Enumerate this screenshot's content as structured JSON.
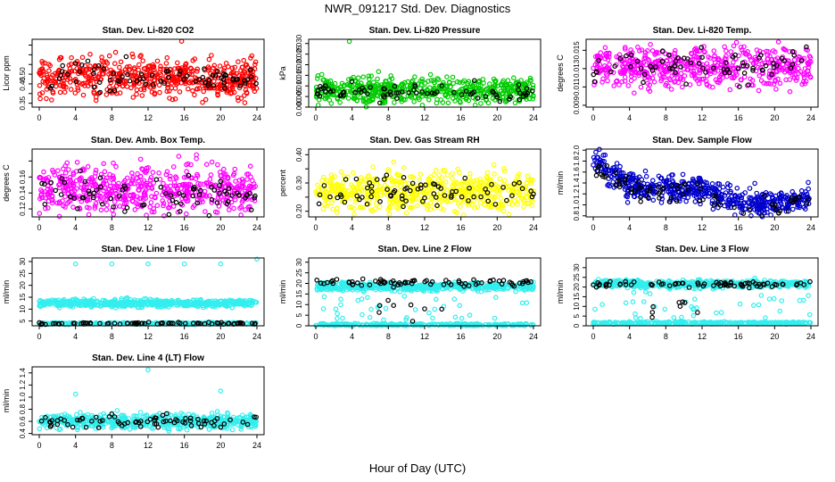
{
  "title": "NWR_091217  Std. Dev. Diagnostics",
  "xlabel": "Hour of Day (UTC)",
  "chart_data": [
    {
      "type": "scatter",
      "title": "Stan. Dev. Li-820 CO2",
      "ylabel": "Licor ppm",
      "xlim": [
        0,
        24
      ],
      "xticks": [
        0,
        4,
        8,
        12,
        16,
        20,
        24
      ],
      "ylim": [
        0.33,
        0.68
      ],
      "yticks": [
        0.35,
        0.4,
        0.45,
        0.5,
        0.55,
        0.6,
        0.65
      ],
      "yticklabels": [
        "0.35",
        "",
        "0.45",
        "0.50",
        "",
        "",
        ""
      ],
      "series": [
        {
          "color": "#ff0000",
          "center": 0.48,
          "spread": 0.05,
          "n": 560,
          "outliers": [
            [
              15.7,
              0.67
            ],
            [
              22.6,
              0.39
            ]
          ]
        },
        {
          "color": "#000000",
          "center": 0.49,
          "spread": 0.04,
          "n": 75
        }
      ]
    },
    {
      "type": "scatter",
      "title": "Stan. Dev. Li-820 Pressure",
      "ylabel": "kPa",
      "xlim": [
        0,
        24
      ],
      "xticks": [
        0,
        4,
        8,
        12,
        16,
        20,
        24
      ],
      "ylim": [
        0,
        0.032
      ],
      "yticks": [
        0,
        0.005,
        0.01,
        0.015,
        0.02,
        0.025,
        0.03
      ],
      "yticklabels": [
        "0.000",
        "0.005",
        "0.010",
        "0.015",
        "0.020",
        "0.025",
        "0.030"
      ],
      "series": [
        {
          "color": "#00cc00",
          "center": 0.008,
          "spread": 0.003,
          "n": 560,
          "outliers": [
            [
              3.7,
              0.031
            ]
          ]
        },
        {
          "color": "#000000",
          "center": 0.007,
          "spread": 0.002,
          "n": 75
        }
      ]
    },
    {
      "type": "scatter",
      "title": "Stan. Dev. Li-820 Temp.",
      "ylabel": "degrees C",
      "xlim": [
        0,
        24
      ],
      "xticks": [
        0,
        4,
        8,
        12,
        16,
        20,
        24
      ],
      "ylim": [
        0.0088,
        0.0162
      ],
      "yticks": [
        0.009,
        0.011,
        0.013,
        0.015
      ],
      "yticklabels": [
        "0.009",
        "0.011",
        "0.013",
        "0.015"
      ],
      "series": [
        {
          "color": "#ff00ff",
          "center": 0.0132,
          "spread": 0.0011,
          "n": 560
        },
        {
          "color": "#000000",
          "center": 0.0133,
          "spread": 0.0009,
          "n": 75
        }
      ]
    },
    {
      "type": "scatter",
      "title": "Stan. Dev. Amb. Box Temp.",
      "ylabel": "degrees C",
      "xlim": [
        0,
        24
      ],
      "xticks": [
        0,
        4,
        8,
        12,
        16,
        20,
        24
      ],
      "ylim": [
        0.11,
        0.195
      ],
      "yticks": [
        0.12,
        0.14,
        0.16,
        0.18
      ],
      "yticklabels": [
        "0.12",
        "0.14",
        "0.16",
        ""
      ],
      "series": [
        {
          "color": "#ff00ff",
          "center": 0.145,
          "spread": 0.015,
          "n": 560
        },
        {
          "color": "#000000",
          "center": 0.138,
          "spread": 0.012,
          "n": 75
        }
      ]
    },
    {
      "type": "scatter",
      "title": "Stan. Dev. Gas Stream RH",
      "ylabel": "percent",
      "xlim": [
        0,
        24
      ],
      "xticks": [
        0,
        4,
        8,
        12,
        16,
        20,
        24
      ],
      "ylim": [
        0.18,
        0.42
      ],
      "yticks": [
        0.2,
        0.25,
        0.3,
        0.35,
        0.4
      ],
      "yticklabels": [
        "0.20",
        "",
        "0.30",
        "",
        "0.40"
      ],
      "series": [
        {
          "color": "#ffff00",
          "center": 0.27,
          "spread": 0.035,
          "n": 560
        },
        {
          "color": "#000000",
          "center": 0.27,
          "spread": 0.025,
          "n": 75
        }
      ]
    },
    {
      "type": "scatter",
      "title": "Stan. Dev. Sample Flow",
      "ylabel": "ml/min",
      "xlim": [
        0,
        24
      ],
      "xticks": [
        0,
        4,
        8,
        12,
        16,
        20,
        24
      ],
      "ylim": [
        0.78,
        2.02
      ],
      "yticks": [
        0.8,
        1.0,
        1.2,
        1.4,
        1.6,
        1.8,
        2.0
      ],
      "yticklabels": [
        "0.8",
        "1.0",
        "1.2",
        "1.4",
        "1.6",
        "1.8",
        "2.0"
      ],
      "series": [
        {
          "color": "#0000cc",
          "trend": [
            [
              0,
              1.85
            ],
            [
              4,
              1.35
            ],
            [
              8,
              1.3
            ],
            [
              12,
              1.3
            ],
            [
              16,
              1.05
            ],
            [
              20,
              1.0
            ],
            [
              24,
              1.15
            ]
          ],
          "spread": 0.12,
          "n": 560
        },
        {
          "color": "#000000",
          "trend": [
            [
              0,
              1.7
            ],
            [
              4,
              1.25
            ],
            [
              8,
              1.25
            ],
            [
              12,
              1.25
            ],
            [
              16,
              1.0
            ],
            [
              20,
              0.95
            ],
            [
              24,
              1.1
            ]
          ],
          "spread": 0.1,
          "n": 75
        }
      ]
    },
    {
      "type": "scatter",
      "title": "Stan. Dev. Line 1 Flow",
      "ylabel": "ml/min",
      "xlim": [
        0,
        24
      ],
      "xticks": [
        0,
        4,
        8,
        12,
        16,
        20,
        24
      ],
      "ylim": [
        3,
        31.5
      ],
      "yticks": [
        5,
        10,
        15,
        20,
        25,
        30
      ],
      "yticklabels": [
        "5",
        "10",
        "15",
        "20",
        "25",
        "30"
      ],
      "series": [
        {
          "color": "#33eeee",
          "center": 12.5,
          "spread": 0.8,
          "n": 560,
          "outliers": [
            [
              4,
              29
            ],
            [
              8,
              29
            ],
            [
              12,
              29
            ],
            [
              16,
              29
            ],
            [
              20,
              29
            ],
            [
              24,
              31
            ]
          ]
        },
        {
          "color": "#33eeee",
          "center": 4.0,
          "spread": 0.2,
          "n": 300
        },
        {
          "color": "#000000",
          "center": 4.0,
          "spread": 0.2,
          "n": 75
        }
      ]
    },
    {
      "type": "scatter",
      "title": "Stan. Dev. Line 2 Flow",
      "ylabel": "ml/min",
      "xlim": [
        0,
        24
      ],
      "xticks": [
        0,
        4,
        8,
        12,
        16,
        20,
        24
      ],
      "ylim": [
        0,
        32
      ],
      "yticks": [
        0,
        5,
        10,
        15,
        20,
        25,
        30
      ],
      "yticklabels": [
        "0",
        "5",
        "10",
        "15",
        "20",
        "25",
        "30"
      ],
      "series": [
        {
          "color": "#33eeee",
          "center": 18.5,
          "spread": 1.0,
          "n": 500,
          "scatter": [
            [
              0,
              24
            ],
            [
              0,
              14
            ]
          ],
          "nscatter": 40
        },
        {
          "color": "#33eeee",
          "center": 0.5,
          "spread": 0.3,
          "n": 300
        },
        {
          "color": "#000000",
          "center": 20.5,
          "spread": 0.8,
          "n": 75,
          "scatter": [
            [
              5,
              15
            ],
            [
              2,
              12
            ]
          ],
          "nscatter": 8
        }
      ]
    },
    {
      "type": "scatter",
      "title": "Stan. Dev. Line 3 Flow",
      "ylabel": "ml/min",
      "xlim": [
        0,
        24
      ],
      "xticks": [
        0,
        4,
        8,
        12,
        16,
        20,
        24
      ],
      "ylim": [
        0,
        35
      ],
      "yticks": [
        0,
        5,
        10,
        15,
        20,
        25,
        30
      ],
      "yticklabels": [
        "0",
        "5",
        "10",
        "15",
        "20",
        "25",
        "30"
      ],
      "series": [
        {
          "color": "#33eeee",
          "center": 21.5,
          "spread": 1.0,
          "n": 500,
          "scatter": [
            [
              0,
              24
            ],
            [
              0,
              18
            ]
          ],
          "nscatter": 40
        },
        {
          "color": "#33eeee",
          "center": 1.5,
          "spread": 0.3,
          "n": 300
        },
        {
          "color": "#000000",
          "center": 21.5,
          "spread": 0.8,
          "n": 75,
          "scatter": [
            [
              5,
              15
            ],
            [
              4,
              14
            ]
          ],
          "nscatter": 8
        }
      ]
    },
    {
      "type": "scatter",
      "title": "Stan. Dev. Line 4 (LT) Flow",
      "ylabel": "ml/min",
      "xlim": [
        0,
        24
      ],
      "xticks": [
        0,
        4,
        8,
        12,
        16,
        20,
        24
      ],
      "ylim": [
        0.38,
        1.5
      ],
      "yticks": [
        0.4,
        0.6,
        0.8,
        1.0,
        1.2,
        1.4
      ],
      "yticklabels": [
        "0.4",
        "0.6",
        "0.8",
        "1.0",
        "1.2",
        "1.4"
      ],
      "series": [
        {
          "color": "#33eeee",
          "center": 0.6,
          "spread": 0.06,
          "n": 560,
          "outliers": [
            [
              4,
              1.05
            ],
            [
              12,
              1.45
            ],
            [
              20,
              1.1
            ]
          ]
        },
        {
          "color": "#000000",
          "center": 0.6,
          "spread": 0.06,
          "n": 75
        }
      ]
    }
  ]
}
